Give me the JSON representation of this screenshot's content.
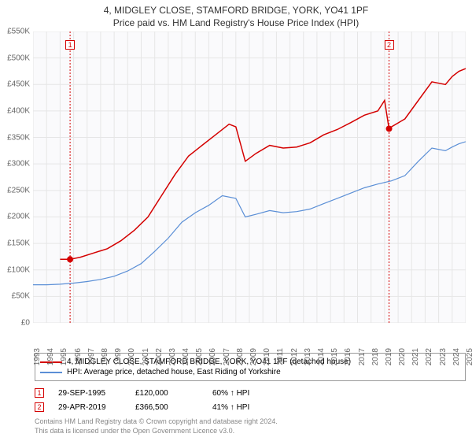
{
  "title": "4, MIDGLEY CLOSE, STAMFORD BRIDGE, YORK, YO41 1PF",
  "subtitle": "Price paid vs. HM Land Registry's House Price Index (HPI)",
  "chart": {
    "type": "line",
    "background_color": "#ffffff",
    "grid_color": "#e6e6e6",
    "plot_bg": "#fafafc",
    "axis_font_size": 10,
    "axis_text_color": "#666666",
    "ylim": [
      0,
      550000
    ],
    "ytick_step": 50000,
    "ytick_labels": [
      "£0",
      "£50K",
      "£100K",
      "£150K",
      "£200K",
      "£250K",
      "£300K",
      "£350K",
      "£400K",
      "£450K",
      "£500K",
      "£550K"
    ],
    "xlim": [
      1993,
      2025
    ],
    "xticks": [
      1993,
      1994,
      1995,
      1996,
      1997,
      1998,
      1999,
      2000,
      2001,
      2002,
      2003,
      2004,
      2005,
      2006,
      2007,
      2008,
      2009,
      2010,
      2011,
      2012,
      2013,
      2014,
      2015,
      2016,
      2017,
      2018,
      2019,
      2020,
      2021,
      2022,
      2023,
      2024,
      2025
    ],
    "series": [
      {
        "name": "price_paid",
        "label": "4, MIDGLEY CLOSE, STAMFORD BRIDGE, YORK, YO41 1PF (detached house)",
        "color": "#d40000",
        "line_width": 1.5,
        "data": [
          [
            1995.0,
            120000
          ],
          [
            1995.74,
            120000
          ],
          [
            1996.5,
            124000
          ],
          [
            1997.5,
            132000
          ],
          [
            1998.5,
            140000
          ],
          [
            1999.5,
            155000
          ],
          [
            2000.5,
            175000
          ],
          [
            2001.5,
            200000
          ],
          [
            2002.5,
            240000
          ],
          [
            2003.5,
            280000
          ],
          [
            2004.5,
            315000
          ],
          [
            2005.5,
            335000
          ],
          [
            2006.5,
            355000
          ],
          [
            2007.5,
            375000
          ],
          [
            2008.0,
            370000
          ],
          [
            2008.7,
            305000
          ],
          [
            2009.5,
            320000
          ],
          [
            2010.5,
            335000
          ],
          [
            2011.5,
            330000
          ],
          [
            2012.5,
            332000
          ],
          [
            2013.5,
            340000
          ],
          [
            2014.5,
            355000
          ],
          [
            2015.5,
            365000
          ],
          [
            2016.5,
            378000
          ],
          [
            2017.5,
            392000
          ],
          [
            2018.5,
            400000
          ],
          [
            2019.0,
            420000
          ],
          [
            2019.33,
            366500
          ],
          [
            2019.5,
            370000
          ],
          [
            2020.5,
            385000
          ],
          [
            2021.5,
            420000
          ],
          [
            2022.5,
            455000
          ],
          [
            2023.5,
            450000
          ],
          [
            2024.0,
            465000
          ],
          [
            2024.5,
            475000
          ],
          [
            2025.0,
            480000
          ]
        ]
      },
      {
        "name": "hpi",
        "label": "HPI: Average price, detached house, East Riding of Yorkshire",
        "color": "#5b8fd6",
        "line_width": 1.2,
        "data": [
          [
            1993.0,
            72000
          ],
          [
            1994.0,
            72000
          ],
          [
            1995.0,
            73000
          ],
          [
            1996.0,
            75000
          ],
          [
            1997.0,
            78000
          ],
          [
            1998.0,
            82000
          ],
          [
            1999.0,
            88000
          ],
          [
            2000.0,
            98000
          ],
          [
            2001.0,
            112000
          ],
          [
            2002.0,
            135000
          ],
          [
            2003.0,
            160000
          ],
          [
            2004.0,
            190000
          ],
          [
            2005.0,
            208000
          ],
          [
            2006.0,
            222000
          ],
          [
            2007.0,
            240000
          ],
          [
            2008.0,
            235000
          ],
          [
            2008.7,
            200000
          ],
          [
            2009.5,
            205000
          ],
          [
            2010.5,
            212000
          ],
          [
            2011.5,
            208000
          ],
          [
            2012.5,
            210000
          ],
          [
            2013.5,
            215000
          ],
          [
            2014.5,
            225000
          ],
          [
            2015.5,
            235000
          ],
          [
            2016.5,
            245000
          ],
          [
            2017.5,
            255000
          ],
          [
            2018.5,
            262000
          ],
          [
            2019.5,
            268000
          ],
          [
            2020.5,
            278000
          ],
          [
            2021.5,
            305000
          ],
          [
            2022.5,
            330000
          ],
          [
            2023.5,
            325000
          ],
          [
            2024.0,
            332000
          ],
          [
            2024.5,
            338000
          ],
          [
            2025.0,
            342000
          ]
        ]
      }
    ],
    "markers": [
      {
        "id": "1",
        "year": 1995.74,
        "price": 120000,
        "marker_color": "#d40000",
        "box_top_y": 534000
      },
      {
        "id": "2",
        "year": 2019.33,
        "price": 366500,
        "marker_color": "#d40000",
        "box_top_y": 534000
      }
    ]
  },
  "legend": {
    "border_color": "#999999",
    "font_size": 10,
    "items": [
      {
        "color": "#d40000",
        "label": "4, MIDGLEY CLOSE, STAMFORD BRIDGE, YORK, YO41 1PF (detached house)"
      },
      {
        "color": "#5b8fd6",
        "label": "HPI: Average price, detached house, East Riding of Yorkshire"
      }
    ]
  },
  "sales": [
    {
      "id": "1",
      "marker_color": "#d40000",
      "date": "29-SEP-1995",
      "price": "£120,000",
      "pct": "60% ↑ HPI"
    },
    {
      "id": "2",
      "marker_color": "#d40000",
      "date": "29-APR-2019",
      "price": "£366,500",
      "pct": "41% ↑ HPI"
    }
  ],
  "copyright": {
    "line1": "Contains HM Land Registry data © Crown copyright and database right 2024.",
    "line2": "This data is licensed under the Open Government Licence v3.0."
  }
}
